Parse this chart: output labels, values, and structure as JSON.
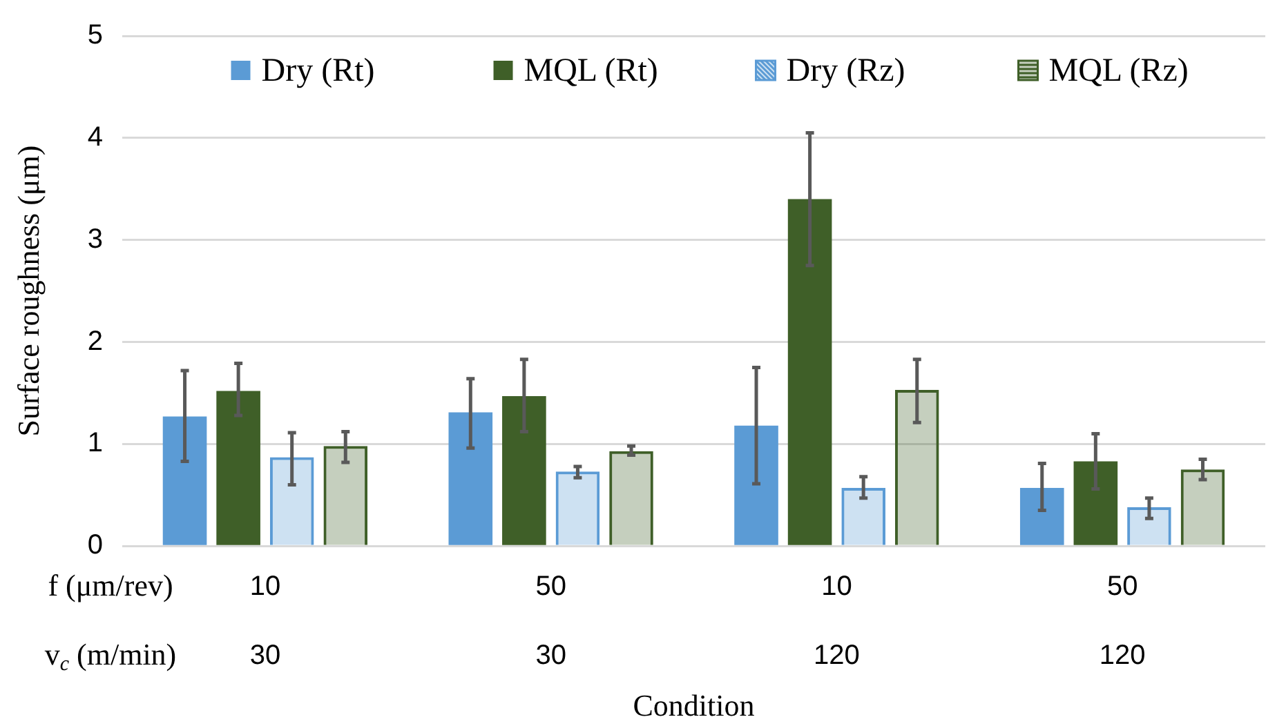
{
  "chart_data": {
    "type": "bar",
    "ylabel": "Surface roughness (μm)",
    "xlabel": "Condition",
    "categories": [
      "10\n30",
      "50\n30",
      "10\n120",
      "50\n120"
    ],
    "annotations": [
      "f (μm/rev)",
      "v$_{c}$ (m/min)"
    ],
    "series": [
      {
        "name": "Dry (Rt)",
        "color": "#5b9bd5",
        "values": [
          1.27,
          1.31,
          1.18,
          0.57
        ],
        "errors": [
          [
            0.83,
            1.72
          ],
          [
            0.96,
            1.64
          ],
          [
            0.61,
            1.75
          ],
          [
            0.35,
            0.81
          ]
        ]
      },
      {
        "name": "MQL (Rt)",
        "color": "#3f5f28",
        "values": [
          1.52,
          1.47,
          3.4,
          0.83
        ],
        "errors": [
          [
            1.28,
            1.79
          ],
          [
            1.12,
            1.83
          ],
          [
            2.75,
            4.05
          ],
          [
            0.56,
            1.1
          ]
        ]
      },
      {
        "name": "Dry (Rz)",
        "color": "#5b9bd5",
        "values": [
          0.87,
          0.73,
          0.57,
          0.38
        ],
        "errors": [
          [
            0.6,
            1.11
          ],
          [
            0.67,
            0.78
          ],
          [
            0.47,
            0.68
          ],
          [
            0.27,
            0.47
          ]
        ]
      },
      {
        "name": "MQL (Rz)",
        "color": "#3f5f28",
        "values": [
          0.98,
          0.93,
          1.53,
          0.75
        ],
        "errors": [
          [
            0.82,
            1.12
          ],
          [
            0.89,
            0.98
          ],
          [
            1.21,
            1.83
          ],
          [
            0.65,
            0.85
          ]
        ]
      }
    ],
    "ylim": [
      0,
      5
    ],
    "yticks": [
      0,
      1,
      2,
      3,
      4,
      5
    ],
    "grid": "y",
    "legend": "top"
  }
}
